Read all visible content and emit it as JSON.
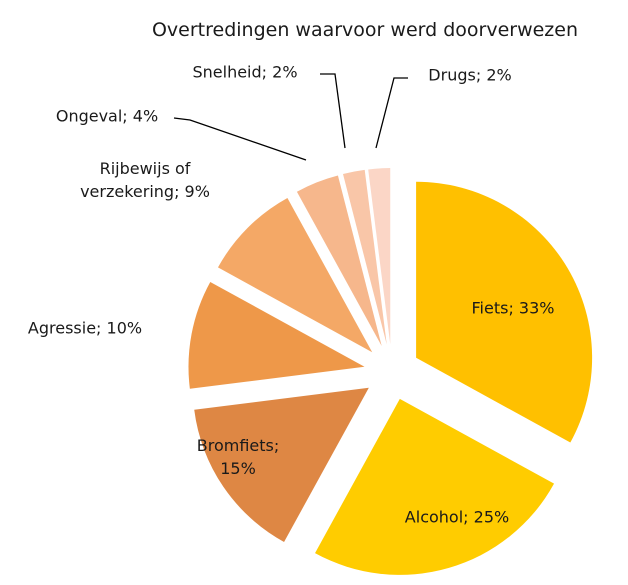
{
  "chart_data": {
    "type": "pie",
    "title": "Overtredingen waarvoor werd doorverwezen",
    "values": [
      33,
      25,
      15,
      10,
      9,
      4,
      2,
      2
    ],
    "value_labels": [
      "Fiets; 33%",
      "Alcohol; 25%",
      "Bromfiets;\n15%",
      "Agressie; 10%",
      "Rijbewijs of\nverzekering; 9%",
      "Ongeval; 4%",
      "Snelheid; 2%",
      "Drugs; 2%"
    ],
    "colors": [
      "#FFC000",
      "#FFCC00",
      "#DE8744",
      "#EE9849",
      "#F4A866",
      "#F6B78C",
      "#F9C6A8",
      "#FBD6C6"
    ]
  }
}
